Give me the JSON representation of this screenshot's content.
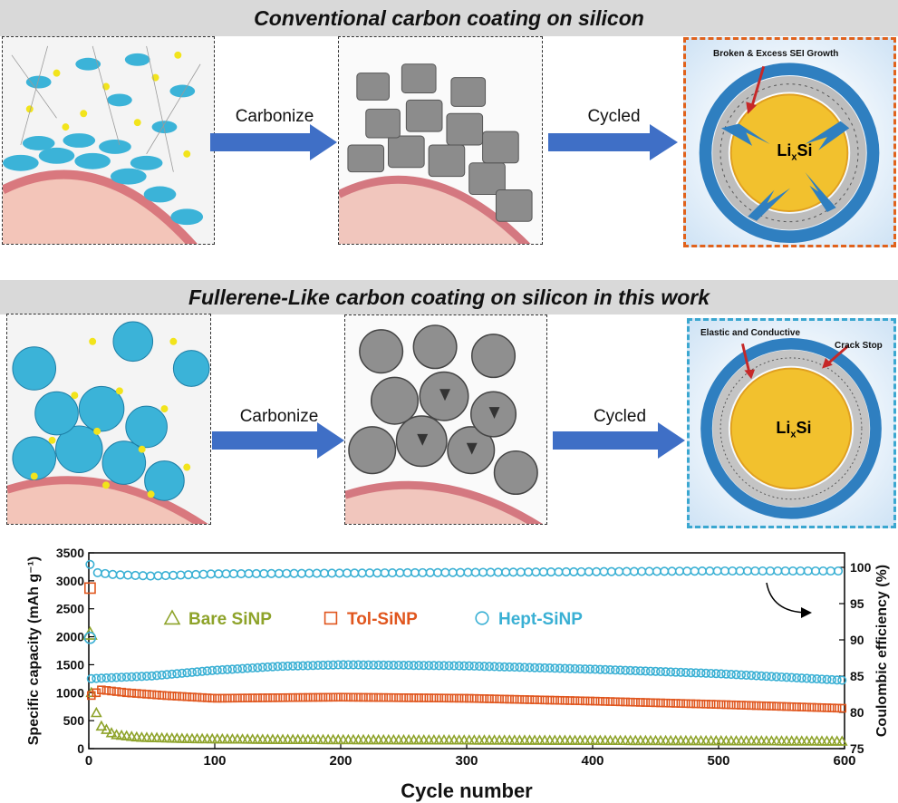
{
  "top": {
    "title": "Conventional carbon coating on silicon",
    "step1": "Carbonize",
    "step2": "Cycled",
    "annotation": "Broken & Excess SEI Growth",
    "core_label_main": "Li",
    "core_label_sub": "x",
    "core_label_end": "Si"
  },
  "bottom": {
    "title": "Fullerene-Like carbon coating on silicon in this work",
    "step1": "Carbonize",
    "step2": "Cycled",
    "annotation_left": "Elastic and Conductive",
    "annotation_right": "Crack Stop",
    "core_label_main": "Li",
    "core_label_sub": "x",
    "core_label_end": "Si"
  },
  "colors": {
    "arrow_blue": "#3f6fc6",
    "shell_blue": "#2f7fc0",
    "core_gold": "#f2c12e",
    "top_border": "#e0621c",
    "bottom_border": "#3ba7d0",
    "bare": "#8ea32a",
    "tol": "#e0561e",
    "hept": "#3ab0d4"
  },
  "chart_data": {
    "type": "scatter",
    "xlabel": "Cycle number",
    "ylabel_left": "Specific capacity (mAh g⁻¹)",
    "ylabel_right": "Coulombic efficiency (%)",
    "xlim": [
      0,
      600
    ],
    "ylim_left": [
      0,
      3500
    ],
    "ylim_right": [
      75,
      102
    ],
    "x_ticks": [
      0,
      100,
      200,
      300,
      400,
      500,
      600
    ],
    "y_ticks_left": [
      0,
      500,
      1000,
      1500,
      2000,
      2500,
      3000,
      3500
    ],
    "y_ticks_right": [
      75,
      80,
      85,
      90,
      95,
      100
    ],
    "legend": [
      "Bare SiNP",
      "Tol-SiNP",
      "Hept-SiNP"
    ],
    "series": [
      {
        "name": "Bare SiNP",
        "marker": "triangle",
        "initial": [
          [
            1,
            2050
          ]
        ],
        "x": [
          2,
          5,
          10,
          20,
          40,
          80,
          150,
          300,
          450,
          600
        ],
        "y": [
          1000,
          700,
          400,
          250,
          200,
          175,
          160,
          150,
          140,
          130
        ]
      },
      {
        "name": "Tol-SiNP",
        "marker": "square",
        "initial": [
          [
            1,
            2870
          ]
        ],
        "x": [
          2,
          10,
          30,
          60,
          100,
          200,
          300,
          400,
          500,
          600
        ],
        "y": [
          950,
          1050,
          1000,
          950,
          900,
          920,
          900,
          850,
          790,
          720
        ]
      },
      {
        "name": "Hept-SiNP",
        "marker": "circle",
        "initial": [
          [
            1,
            1980
          ]
        ],
        "x": [
          2,
          20,
          50,
          100,
          150,
          200,
          300,
          400,
          500,
          600
        ],
        "y": [
          1250,
          1270,
          1300,
          1400,
          1470,
          1500,
          1480,
          1420,
          1340,
          1220
        ]
      }
    ],
    "efficiency": {
      "name": "Hept-SiNP",
      "x": [
        1,
        5,
        20,
        50,
        100,
        200,
        300,
        400,
        500,
        600
      ],
      "y": [
        100.4,
        99.3,
        99.0,
        98.8,
        99.1,
        99.2,
        99.3,
        99.4,
        99.5,
        99.5
      ]
    }
  }
}
